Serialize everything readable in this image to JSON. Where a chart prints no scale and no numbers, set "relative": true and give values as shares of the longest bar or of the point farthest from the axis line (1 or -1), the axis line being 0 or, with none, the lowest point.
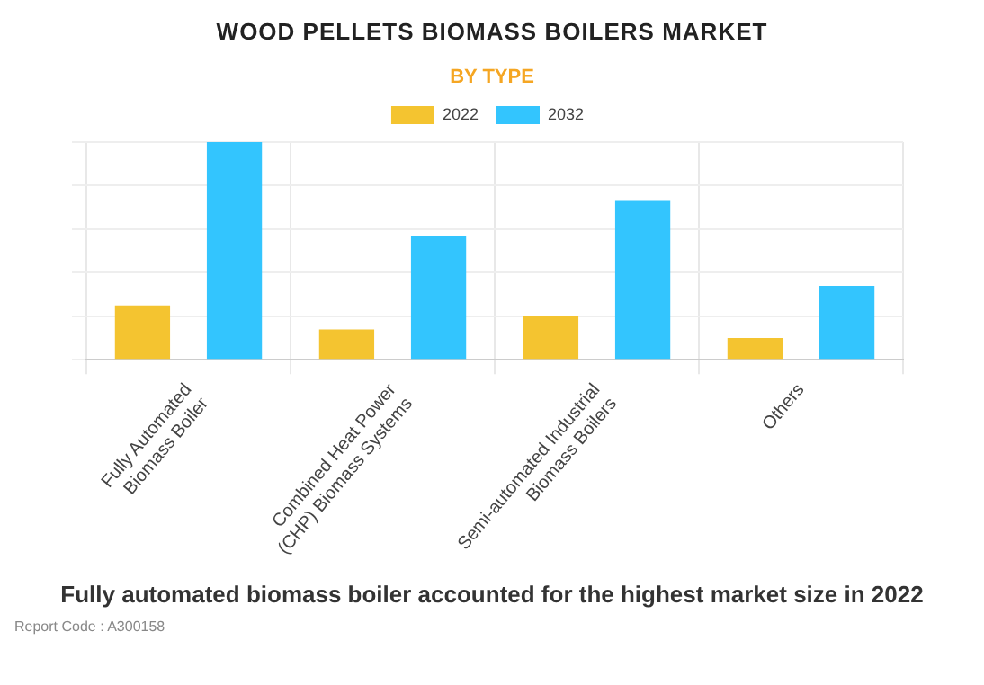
{
  "chart_data": {
    "type": "bar",
    "title": "WOOD PELLETS BIOMASS BOILERS MARKET",
    "subtitle": "BY TYPE",
    "categories": [
      "Fully Automated Biomass Boiler",
      "Combined Heat Power (CHP) Biomass Systems",
      "Semi-automated Industrial Biomass Boilers",
      "Others"
    ],
    "series": [
      {
        "name": "2022",
        "color": "#f4c430",
        "values": [
          0.25,
          0.14,
          0.2,
          0.1
        ]
      },
      {
        "name": "2032",
        "color": "#33c5fe",
        "values": [
          1,
          0.57,
          0.73,
          0.34
        ]
      }
    ],
    "relative": true,
    "grid": true,
    "legend": "top",
    "annotations": [
      "Fully automated biomass boiler accounted for the highest market size in 2022",
      "Report Code : A300158"
    ]
  }
}
